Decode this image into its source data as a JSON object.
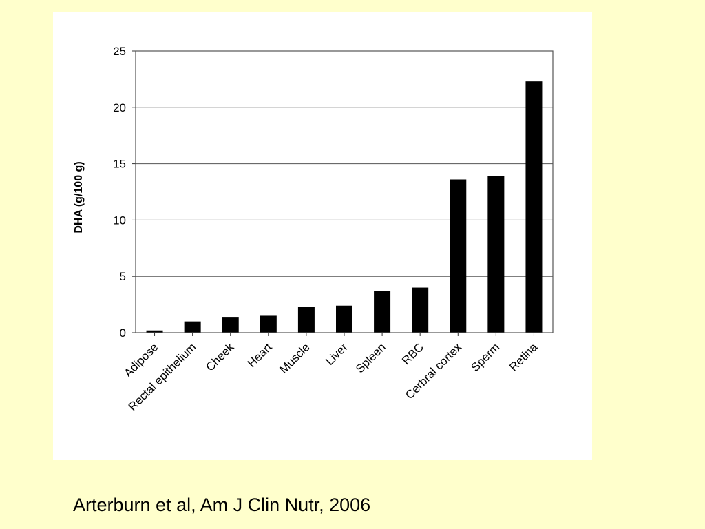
{
  "slide": {
    "background": "#ffffcc",
    "citation": "Arterburn et al, Am J Clin Nutr, 2006"
  },
  "chart_data": {
    "type": "bar",
    "title": "",
    "xlabel": "",
    "ylabel": "DHA (g/100 g)",
    "ylim": [
      0,
      25
    ],
    "yticks": [
      0,
      5,
      10,
      15,
      20,
      25
    ],
    "grid": true,
    "legend": "none",
    "bar_color": "#000000",
    "categories": [
      "Adipose",
      "Rectal epithelium",
      "Cheek",
      "Heart",
      "Muscle",
      "Liver",
      "Spleen",
      "RBC",
      "Cerbral cortex",
      "Sperm",
      "Retina"
    ],
    "values": [
      0.2,
      1.0,
      1.4,
      1.5,
      2.3,
      2.4,
      3.7,
      4.0,
      13.6,
      13.9,
      22.3
    ]
  }
}
